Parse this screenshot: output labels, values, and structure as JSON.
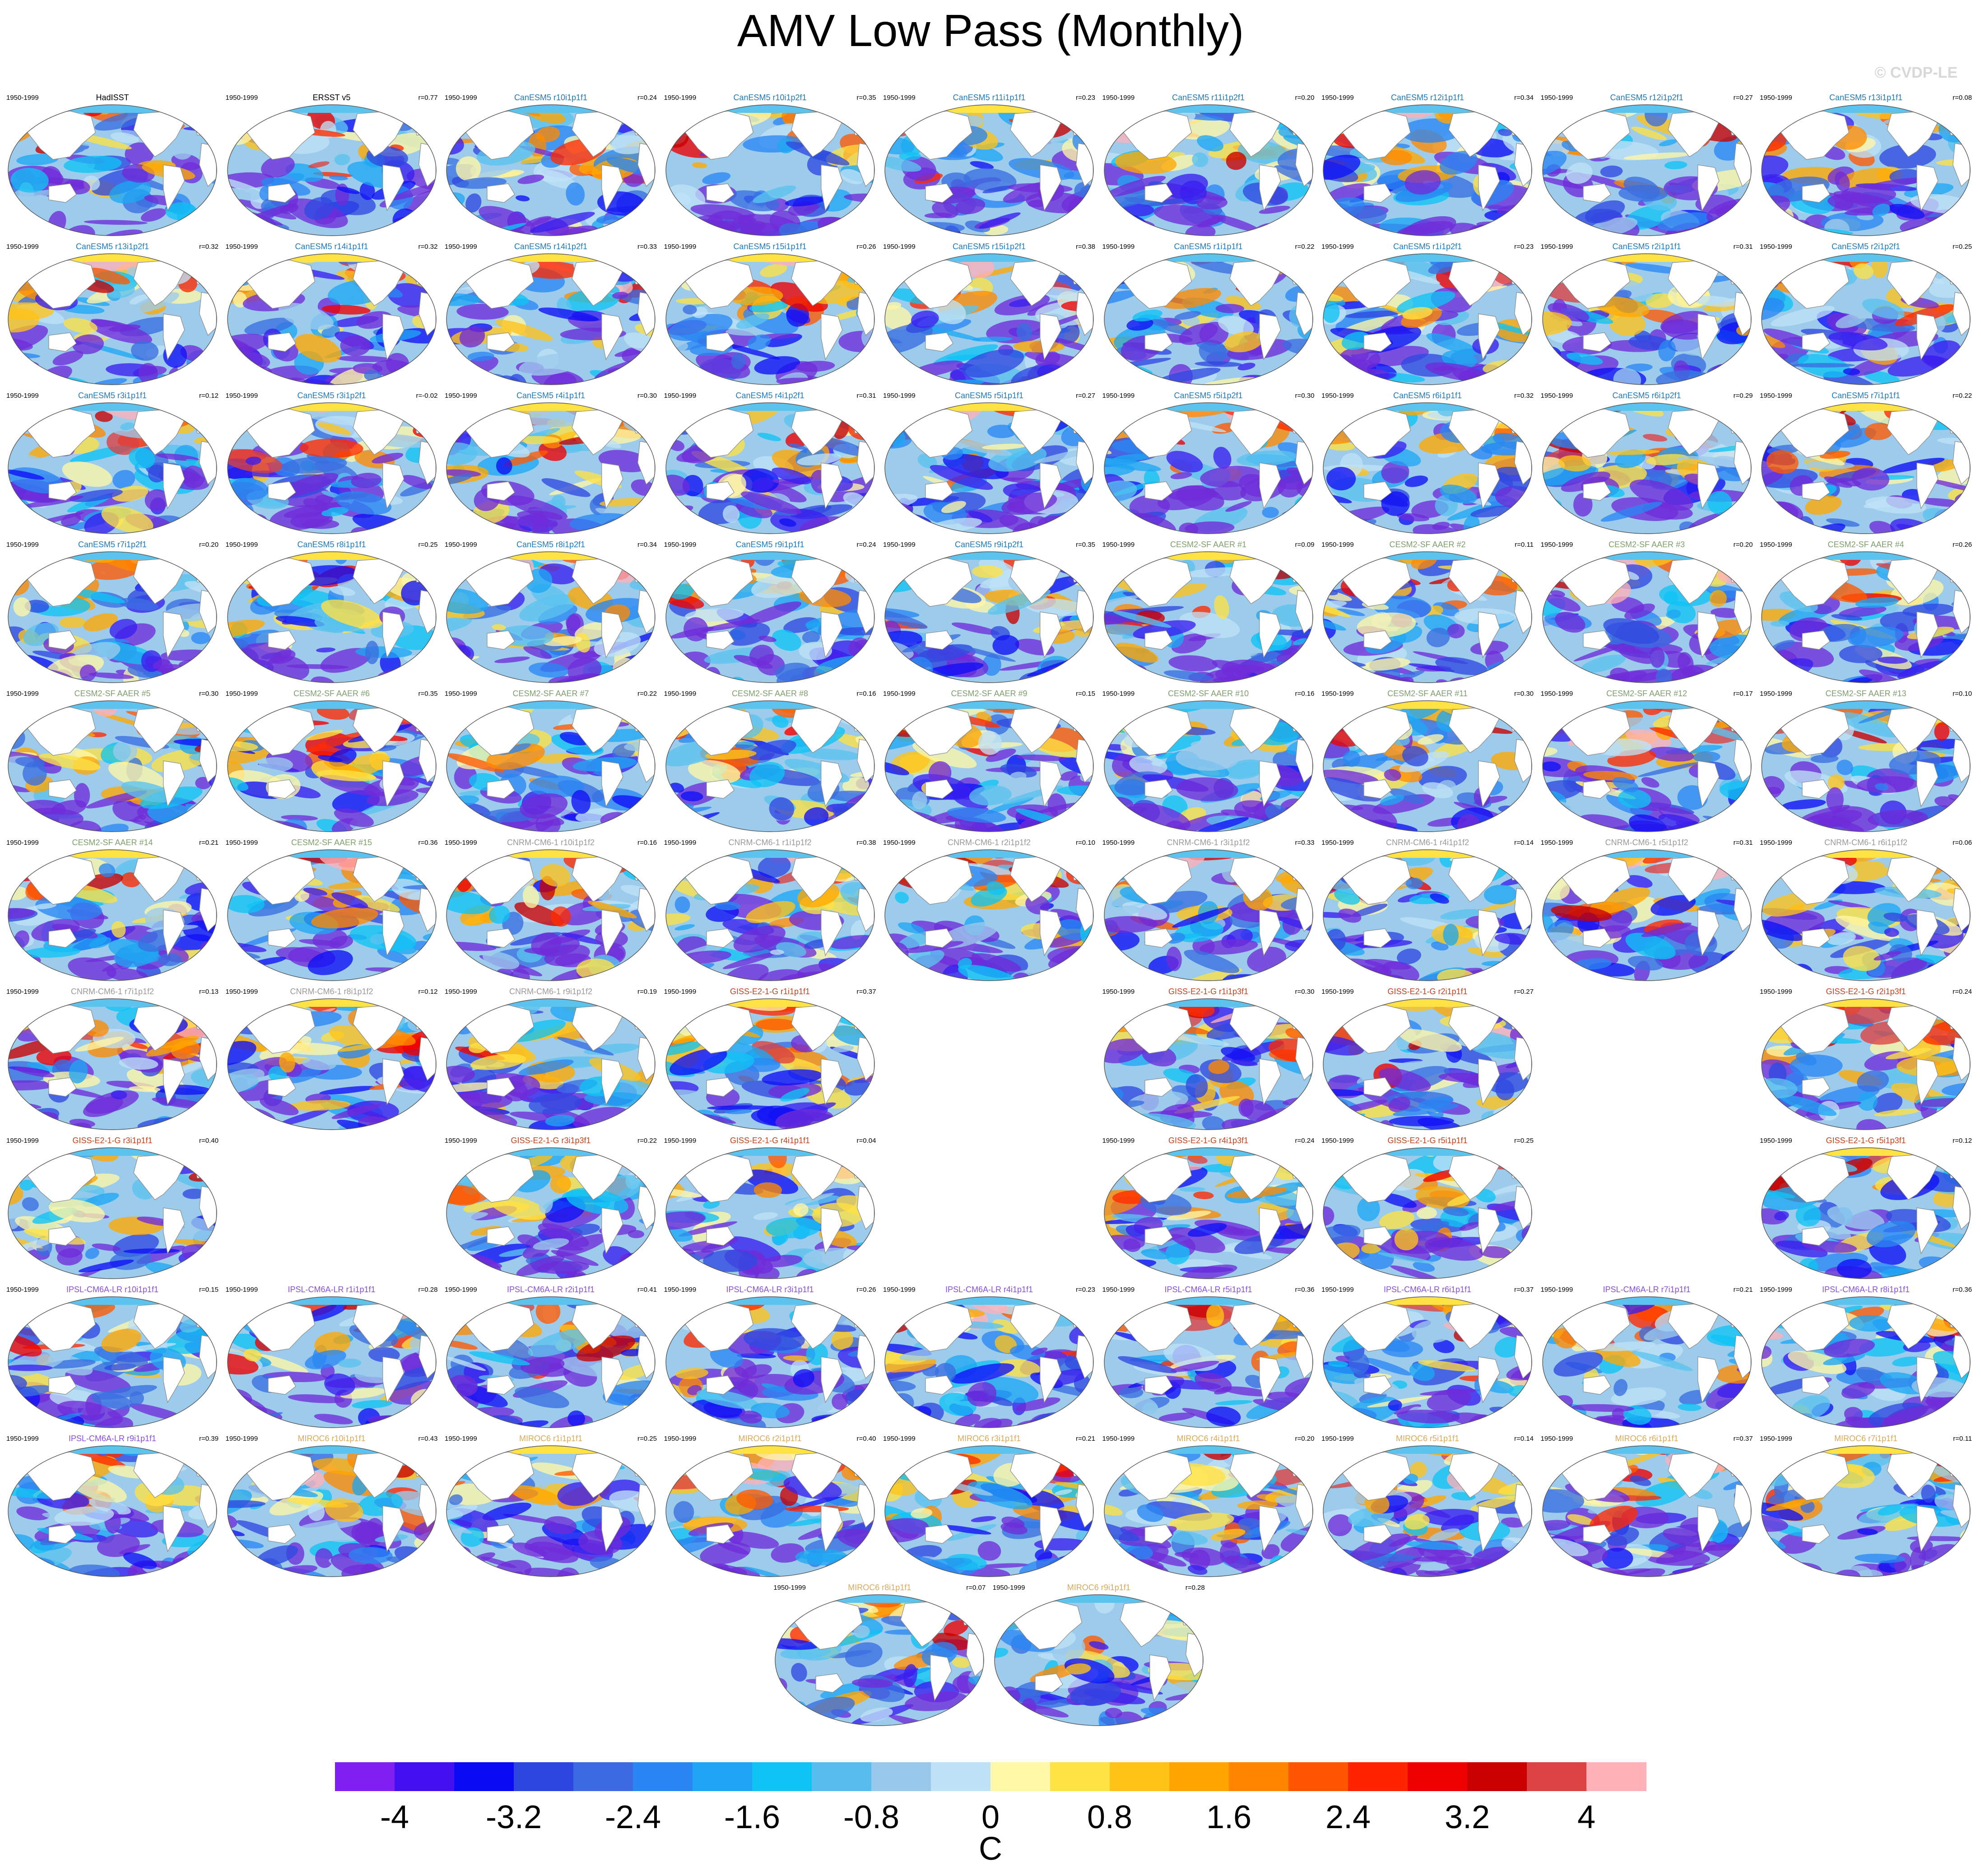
{
  "title": "AMV Low Pass (Monthly)",
  "copyright": "© CVDP-LE",
  "period_label": "1950-1999",
  "colors": {
    "ocean_gradient": [
      "#6f2bd8",
      "#3a1ff0",
      "#0f0ff5",
      "#2f49e0",
      "#3a6ee0",
      "#2a86f2",
      "#1fa7f2",
      "#10c3f5",
      "#5bc3ee",
      "#9ccbec",
      "#bfe2f6",
      "#fff6a6",
      "#ffe244",
      "#ffc318",
      "#ffa800",
      "#ff8a00",
      "#ff5a00",
      "#ff2a00",
      "#ee0000",
      "#c80000",
      "#dc4040",
      "#ffb1b8"
    ],
    "name_colors": {
      "observations": "#000000",
      "CanESM5": "#1e7ab8",
      "CESM2-SF AAER": "#7f9f6c",
      "CNRM-CM6-1": "#9a9a9a",
      "GISS-E2-1-G": "#c0431e",
      "IPSL-CM6A-LR": "#8a4fd8",
      "MIROC6": "#d9a95a"
    },
    "coastline": "#8a8a8a",
    "map_outline": "#555555"
  },
  "panels": [
    {
      "name": "HadISST",
      "group": "observations",
      "r": "",
      "row": 0,
      "col": 0
    },
    {
      "name": "ERSST v5",
      "group": "observations",
      "r": "r=0.77",
      "row": 0,
      "col": 1
    },
    {
      "name": "CanESM5 r10i1p1f1",
      "group": "CanESM5",
      "r": "r=0.24",
      "row": 0,
      "col": 2
    },
    {
      "name": "CanESM5 r10i1p2f1",
      "group": "CanESM5",
      "r": "r=0.35",
      "row": 0,
      "col": 3
    },
    {
      "name": "CanESM5 r11i1p1f1",
      "group": "CanESM5",
      "r": "r=0.23",
      "row": 0,
      "col": 4
    },
    {
      "name": "CanESM5 r11i1p2f1",
      "group": "CanESM5",
      "r": "r=0.20",
      "row": 0,
      "col": 5
    },
    {
      "name": "CanESM5 r12i1p1f1",
      "group": "CanESM5",
      "r": "r=0.34",
      "row": 0,
      "col": 6
    },
    {
      "name": "CanESM5 r12i1p2f1",
      "group": "CanESM5",
      "r": "r=0.27",
      "row": 0,
      "col": 7
    },
    {
      "name": "CanESM5 r13i1p1f1",
      "group": "CanESM5",
      "r": "r=0.08",
      "row": 0,
      "col": 8
    },
    {
      "name": "CanESM5 r13i1p2f1",
      "group": "CanESM5",
      "r": "r=0.32",
      "row": 1,
      "col": 0
    },
    {
      "name": "CanESM5 r14i1p1f1",
      "group": "CanESM5",
      "r": "r=0.32",
      "row": 1,
      "col": 1
    },
    {
      "name": "CanESM5 r14i1p2f1",
      "group": "CanESM5",
      "r": "r=0.33",
      "row": 1,
      "col": 2
    },
    {
      "name": "CanESM5 r15i1p1f1",
      "group": "CanESM5",
      "r": "r=0.26",
      "row": 1,
      "col": 3
    },
    {
      "name": "CanESM5 r15i1p2f1",
      "group": "CanESM5",
      "r": "r=0.38",
      "row": 1,
      "col": 4
    },
    {
      "name": "CanESM5 r1i1p1f1",
      "group": "CanESM5",
      "r": "r=0.22",
      "row": 1,
      "col": 5
    },
    {
      "name": "CanESM5 r1i1p2f1",
      "group": "CanESM5",
      "r": "r=0.23",
      "row": 1,
      "col": 6
    },
    {
      "name": "CanESM5 r2i1p1f1",
      "group": "CanESM5",
      "r": "r=0.31",
      "row": 1,
      "col": 7
    },
    {
      "name": "CanESM5 r2i1p2f1",
      "group": "CanESM5",
      "r": "r=0.25",
      "row": 1,
      "col": 8
    },
    {
      "name": "CanESM5 r3i1p1f1",
      "group": "CanESM5",
      "r": "r=0.12",
      "row": 2,
      "col": 0
    },
    {
      "name": "CanESM5 r3i1p2f1",
      "group": "CanESM5",
      "r": "r=-0.02",
      "row": 2,
      "col": 1
    },
    {
      "name": "CanESM5 r4i1p1f1",
      "group": "CanESM5",
      "r": "r=0.30",
      "row": 2,
      "col": 2
    },
    {
      "name": "CanESM5 r4i1p2f1",
      "group": "CanESM5",
      "r": "r=0.31",
      "row": 2,
      "col": 3
    },
    {
      "name": "CanESM5 r5i1p1f1",
      "group": "CanESM5",
      "r": "r=0.27",
      "row": 2,
      "col": 4
    },
    {
      "name": "CanESM5 r5i1p2f1",
      "group": "CanESM5",
      "r": "r=0.30",
      "row": 2,
      "col": 5
    },
    {
      "name": "CanESM5 r6i1p1f1",
      "group": "CanESM5",
      "r": "r=0.32",
      "row": 2,
      "col": 6
    },
    {
      "name": "CanESM5 r6i1p2f1",
      "group": "CanESM5",
      "r": "r=0.29",
      "row": 2,
      "col": 7
    },
    {
      "name": "CanESM5 r7i1p1f1",
      "group": "CanESM5",
      "r": "r=0.22",
      "row": 2,
      "col": 8
    },
    {
      "name": "CanESM5 r7i1p2f1",
      "group": "CanESM5",
      "r": "r=0.20",
      "row": 3,
      "col": 0
    },
    {
      "name": "CanESM5 r8i1p1f1",
      "group": "CanESM5",
      "r": "r=0.25",
      "row": 3,
      "col": 1
    },
    {
      "name": "CanESM5 r8i1p2f1",
      "group": "CanESM5",
      "r": "r=0.34",
      "row": 3,
      "col": 2
    },
    {
      "name": "CanESM5 r9i1p1f1",
      "group": "CanESM5",
      "r": "r=0.24",
      "row": 3,
      "col": 3
    },
    {
      "name": "CanESM5 r9i1p2f1",
      "group": "CanESM5",
      "r": "r=0.35",
      "row": 3,
      "col": 4
    },
    {
      "name": "CESM2-SF AAER #1",
      "group": "CESM2-SF AAER",
      "r": "r=0.09",
      "row": 3,
      "col": 5
    },
    {
      "name": "CESM2-SF AAER #2",
      "group": "CESM2-SF AAER",
      "r": "r=0.11",
      "row": 3,
      "col": 6
    },
    {
      "name": "CESM2-SF AAER #3",
      "group": "CESM2-SF AAER",
      "r": "r=0.20",
      "row": 3,
      "col": 7
    },
    {
      "name": "CESM2-SF AAER #4",
      "group": "CESM2-SF AAER",
      "r": "r=0.26",
      "row": 3,
      "col": 8
    },
    {
      "name": "CESM2-SF AAER #5",
      "group": "CESM2-SF AAER",
      "r": "r=0.30",
      "row": 4,
      "col": 0
    },
    {
      "name": "CESM2-SF AAER #6",
      "group": "CESM2-SF AAER",
      "r": "r=0.35",
      "row": 4,
      "col": 1
    },
    {
      "name": "CESM2-SF AAER #7",
      "group": "CESM2-SF AAER",
      "r": "r=0.22",
      "row": 4,
      "col": 2
    },
    {
      "name": "CESM2-SF AAER #8",
      "group": "CESM2-SF AAER",
      "r": "r=0.16",
      "row": 4,
      "col": 3
    },
    {
      "name": "CESM2-SF AAER #9",
      "group": "CESM2-SF AAER",
      "r": "r=0.15",
      "row": 4,
      "col": 4
    },
    {
      "name": "CESM2-SF AAER #10",
      "group": "CESM2-SF AAER",
      "r": "r=0.16",
      "row": 4,
      "col": 5
    },
    {
      "name": "CESM2-SF AAER #11",
      "group": "CESM2-SF AAER",
      "r": "r=0.30",
      "row": 4,
      "col": 6
    },
    {
      "name": "CESM2-SF AAER #12",
      "group": "CESM2-SF AAER",
      "r": "r=0.17",
      "row": 4,
      "col": 7
    },
    {
      "name": "CESM2-SF AAER #13",
      "group": "CESM2-SF AAER",
      "r": "r=0.10",
      "row": 4,
      "col": 8
    },
    {
      "name": "CESM2-SF AAER #14",
      "group": "CESM2-SF AAER",
      "r": "r=0.21",
      "row": 5,
      "col": 0
    },
    {
      "name": "CESM2-SF AAER #15",
      "group": "CESM2-SF AAER",
      "r": "r=0.36",
      "row": 5,
      "col": 1
    },
    {
      "name": "CNRM-CM6-1 r10i1p1f2",
      "group": "CNRM-CM6-1",
      "r": "r=0.16",
      "row": 5,
      "col": 2
    },
    {
      "name": "CNRM-CM6-1 r1i1p1f2",
      "group": "CNRM-CM6-1",
      "r": "r=0.38",
      "row": 5,
      "col": 3
    },
    {
      "name": "CNRM-CM6-1 r2i1p1f2",
      "group": "CNRM-CM6-1",
      "r": "r=0.10",
      "row": 5,
      "col": 4
    },
    {
      "name": "CNRM-CM6-1 r3i1p1f2",
      "group": "CNRM-CM6-1",
      "r": "r=0.33",
      "row": 5,
      "col": 5
    },
    {
      "name": "CNRM-CM6-1 r4i1p1f2",
      "group": "CNRM-CM6-1",
      "r": "r=0.14",
      "row": 5,
      "col": 6
    },
    {
      "name": "CNRM-CM6-1 r5i1p1f2",
      "group": "CNRM-CM6-1",
      "r": "r=0.31",
      "row": 5,
      "col": 7
    },
    {
      "name": "CNRM-CM6-1 r6i1p1f2",
      "group": "CNRM-CM6-1",
      "r": "r=0.06",
      "row": 5,
      "col": 8
    },
    {
      "name": "CNRM-CM6-1 r7i1p1f2",
      "group": "CNRM-CM6-1",
      "r": "r=0.13",
      "row": 6,
      "col": 0
    },
    {
      "name": "CNRM-CM6-1 r8i1p1f2",
      "group": "CNRM-CM6-1",
      "r": "r=0.12",
      "row": 6,
      "col": 1
    },
    {
      "name": "CNRM-CM6-1 r9i1p1f2",
      "group": "CNRM-CM6-1",
      "r": "r=0.19",
      "row": 6,
      "col": 2
    },
    {
      "name": "GISS-E2-1-G r1i1p1f1",
      "group": "GISS-E2-1-G",
      "r": "r=0.37",
      "row": 6,
      "col": 3
    },
    {
      "name": "GISS-E2-1-G r1i1p3f1",
      "group": "GISS-E2-1-G",
      "r": "r=0.30",
      "row": 6,
      "col": 5
    },
    {
      "name": "GISS-E2-1-G r2i1p1f1",
      "group": "GISS-E2-1-G",
      "r": "r=0.27",
      "row": 6,
      "col": 6
    },
    {
      "name": "GISS-E2-1-G r2i1p3f1",
      "group": "GISS-E2-1-G",
      "r": "r=0.24",
      "row": 6,
      "col": 8
    },
    {
      "name": "GISS-E2-1-G r3i1p1f1",
      "group": "GISS-E2-1-G",
      "r": "r=0.40",
      "row": 7,
      "col": 0
    },
    {
      "name": "GISS-E2-1-G r3i1p3f1",
      "group": "GISS-E2-1-G",
      "r": "r=0.22",
      "row": 7,
      "col": 2
    },
    {
      "name": "GISS-E2-1-G r4i1p1f1",
      "group": "GISS-E2-1-G",
      "r": "r=0.04",
      "row": 7,
      "col": 3
    },
    {
      "name": "GISS-E2-1-G r4i1p3f1",
      "group": "GISS-E2-1-G",
      "r": "r=0.24",
      "row": 7,
      "col": 5
    },
    {
      "name": "GISS-E2-1-G r5i1p1f1",
      "group": "GISS-E2-1-G",
      "r": "r=0.25",
      "row": 7,
      "col": 6
    },
    {
      "name": "GISS-E2-1-G r5i1p3f1",
      "group": "GISS-E2-1-G",
      "r": "r=0.12",
      "row": 7,
      "col": 8
    },
    {
      "name": "IPSL-CM6A-LR r10i1p1f1",
      "group": "IPSL-CM6A-LR",
      "r": "r=0.15",
      "row": 8,
      "col": 0
    },
    {
      "name": "IPSL-CM6A-LR r1i1p1f1",
      "group": "IPSL-CM6A-LR",
      "r": "r=0.28",
      "row": 8,
      "col": 1
    },
    {
      "name": "IPSL-CM6A-LR r2i1p1f1",
      "group": "IPSL-CM6A-LR",
      "r": "r=0.41",
      "row": 8,
      "col": 2
    },
    {
      "name": "IPSL-CM6A-LR r3i1p1f1",
      "group": "IPSL-CM6A-LR",
      "r": "r=0.26",
      "row": 8,
      "col": 3
    },
    {
      "name": "IPSL-CM6A-LR r4i1p1f1",
      "group": "IPSL-CM6A-LR",
      "r": "r=0.23",
      "row": 8,
      "col": 4
    },
    {
      "name": "IPSL-CM6A-LR r5i1p1f1",
      "group": "IPSL-CM6A-LR",
      "r": "r=0.36",
      "row": 8,
      "col": 5
    },
    {
      "name": "IPSL-CM6A-LR r6i1p1f1",
      "group": "IPSL-CM6A-LR",
      "r": "r=0.37",
      "row": 8,
      "col": 6
    },
    {
      "name": "IPSL-CM6A-LR r7i1p1f1",
      "group": "IPSL-CM6A-LR",
      "r": "r=0.21",
      "row": 8,
      "col": 7
    },
    {
      "name": "IPSL-CM6A-LR r8i1p1f1",
      "group": "IPSL-CM6A-LR",
      "r": "r=0.36",
      "row": 8,
      "col": 8
    },
    {
      "name": "IPSL-CM6A-LR r9i1p1f1",
      "group": "IPSL-CM6A-LR",
      "r": "r=0.39",
      "row": 9,
      "col": 0
    },
    {
      "name": "MIROC6 r10i1p1f1",
      "group": "MIROC6",
      "r": "r=0.43",
      "row": 9,
      "col": 1
    },
    {
      "name": "MIROC6 r1i1p1f1",
      "group": "MIROC6",
      "r": "r=0.25",
      "row": 9,
      "col": 2
    },
    {
      "name": "MIROC6 r2i1p1f1",
      "group": "MIROC6",
      "r": "r=0.40",
      "row": 9,
      "col": 3
    },
    {
      "name": "MIROC6 r3i1p1f1",
      "group": "MIROC6",
      "r": "r=0.21",
      "row": 9,
      "col": 4
    },
    {
      "name": "MIROC6 r4i1p1f1",
      "group": "MIROC6",
      "r": "r=0.20",
      "row": 9,
      "col": 5
    },
    {
      "name": "MIROC6 r5i1p1f1",
      "group": "MIROC6",
      "r": "r=0.14",
      "row": 9,
      "col": 6
    },
    {
      "name": "MIROC6 r6i1p1f1",
      "group": "MIROC6",
      "r": "r=0.37",
      "row": 9,
      "col": 7
    },
    {
      "name": "MIROC6 r7i1p1f1",
      "group": "MIROC6",
      "r": "r=0.11",
      "row": 9,
      "col": 8
    },
    {
      "name": "MIROC6 r8i1p1f1",
      "group": "MIROC6",
      "r": "r=0.07",
      "row": 10,
      "col": 3.5
    },
    {
      "name": "MIROC6 r9i1p1f1",
      "group": "MIROC6",
      "r": "r=0.28",
      "row": 10,
      "col": 4.5
    }
  ],
  "colorbar": {
    "units": "C",
    "colors": [
      "#7f1ff2",
      "#4410f0",
      "#0a0af5",
      "#2e46e0",
      "#3c6ae2",
      "#2a86f2",
      "#1fa3f5",
      "#10c3f5",
      "#58bdee",
      "#98c9ec",
      "#bfe2f6",
      "#fff8a6",
      "#ffe244",
      "#ffc318",
      "#ffa400",
      "#ff8400",
      "#ff5400",
      "#ff2400",
      "#ee0000",
      "#c90000",
      "#dc4444",
      "#ffb1b8"
    ],
    "tick_labels": [
      "-4",
      "-3.2",
      "-2.4",
      "-1.6",
      "-0.8",
      "0",
      "0.8",
      "1.6",
      "2.4",
      "3.2",
      "4"
    ],
    "tick_values": [
      -4,
      -3.2,
      -2.4,
      -1.6,
      -0.8,
      0,
      0.8,
      1.6,
      2.4,
      3.2,
      4
    ],
    "levels": [
      -4,
      -3.6,
      -3.2,
      -2.8,
      -2.4,
      -2.0,
      -1.6,
      -1.2,
      -0.8,
      -0.4,
      0,
      0.4,
      0.8,
      1.2,
      1.6,
      2.0,
      2.4,
      2.8,
      3.2,
      3.6,
      4
    ]
  }
}
